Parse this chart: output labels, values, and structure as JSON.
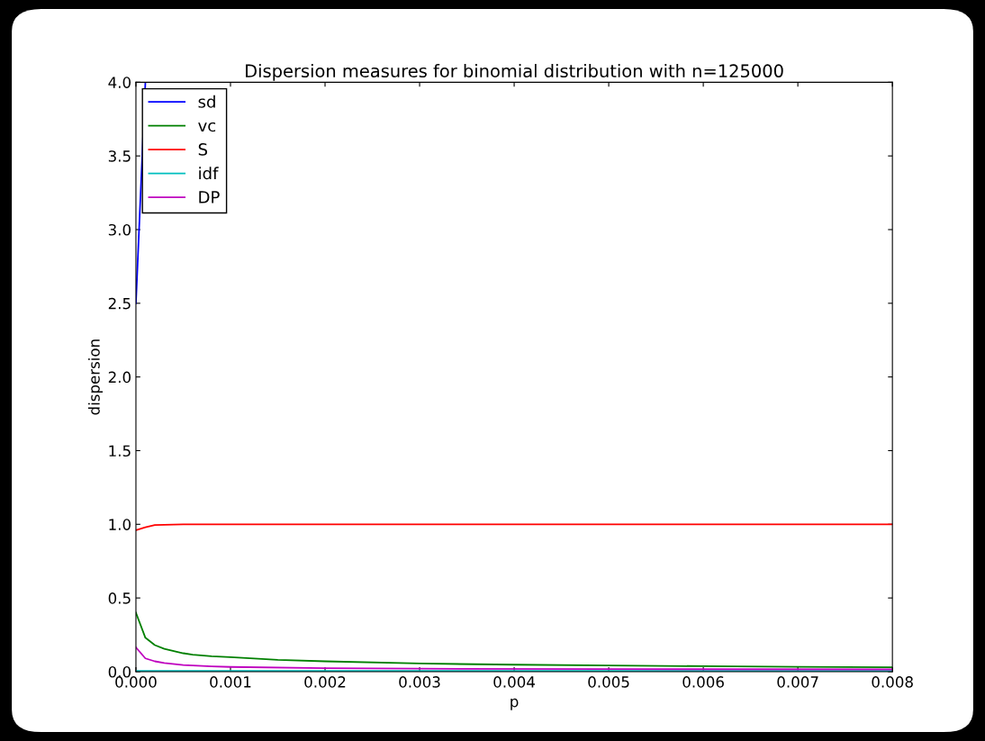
{
  "chart_data": {
    "type": "line",
    "title": "Dispersion measures for binomial distribution with n=125000",
    "xlabel": "p",
    "ylabel": "dispersion",
    "series": [
      {
        "name": "sd",
        "color": "#0000ff",
        "x": [
          0,
          0.0001
        ],
        "values": [
          2.5,
          4.0
        ]
      },
      {
        "name": "vc",
        "color": "#008000",
        "x": [
          0,
          0.0001,
          0.0002,
          0.0003,
          0.0004,
          0.0005,
          0.0006,
          0.0008,
          0.001,
          0.0015,
          0.002,
          0.003,
          0.004,
          0.005,
          0.006,
          0.007,
          0.008
        ],
        "values": [
          0.4,
          0.23,
          0.18,
          0.155,
          0.14,
          0.125,
          0.115,
          0.105,
          0.098,
          0.08,
          0.07,
          0.055,
          0.047,
          0.042,
          0.037,
          0.033,
          0.03
        ]
      },
      {
        "name": "S",
        "color": "#ff0000",
        "x": [
          0,
          0.0001,
          0.0002,
          0.0005,
          0.001,
          0.008
        ],
        "values": [
          0.96,
          0.98,
          0.995,
          1.0,
          1.0,
          1.0
        ]
      },
      {
        "name": "idf",
        "color": "#00bfbf",
        "x": [
          0,
          0.008
        ],
        "values": [
          0.005,
          0.005
        ]
      },
      {
        "name": "DP",
        "color": "#bf00bf",
        "x": [
          0,
          0.0001,
          0.0002,
          0.0003,
          0.0005,
          0.0008,
          0.001,
          0.002,
          0.003,
          0.005,
          0.008
        ],
        "values": [
          0.165,
          0.09,
          0.07,
          0.058,
          0.045,
          0.036,
          0.032,
          0.024,
          0.02,
          0.017,
          0.015
        ]
      }
    ],
    "xlim": [
      0,
      0.008
    ],
    "xticks": [
      {
        "value": 0,
        "label": "0.000"
      },
      0.001,
      0.002,
      0.003,
      0.004,
      0.005,
      0.006,
      0.007,
      0.008
    ],
    "ylim": [
      0,
      4.0
    ],
    "yticks": [
      {
        "value": 0,
        "label": "0.0"
      },
      0.5,
      {
        "value": 1,
        "label": "1.0"
      },
      1.5,
      {
        "value": 2,
        "label": "2.0"
      },
      2.5,
      {
        "value": 3,
        "label": "3.0"
      },
      3.5,
      {
        "value": 4,
        "label": "4.0"
      }
    ],
    "legend": "top left",
    "grid": false
  }
}
